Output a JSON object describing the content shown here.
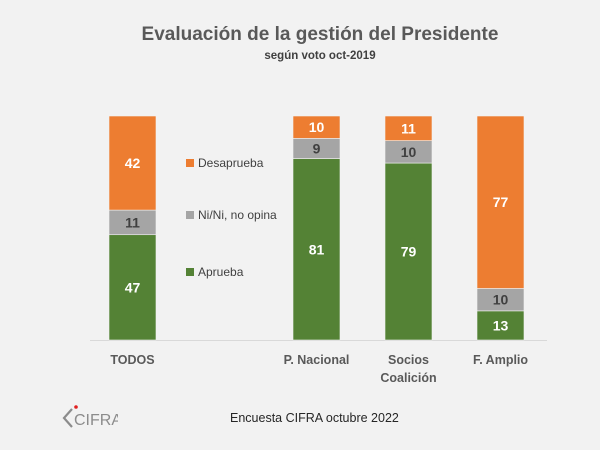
{
  "chart_data": {
    "type": "bar",
    "stacked": true,
    "title": "Evaluación de la gestión del Presidente",
    "subtitle": "según voto oct-2019",
    "categories": [
      "TODOS",
      "P. Nacional",
      "Socios Coalición",
      "F. Amplio"
    ],
    "category_lines": [
      [
        "TODOS"
      ],
      [
        "P. Nacional"
      ],
      [
        "Socios",
        "Coalición"
      ],
      [
        "F. Amplio"
      ]
    ],
    "series": [
      {
        "name": "Aprueba",
        "color": "#548235",
        "label_color": "#ffffff",
        "values": [
          47,
          81,
          79,
          13
        ]
      },
      {
        "name": "Ni/Ni, no opina",
        "color": "#a5a5a5",
        "label_color": "#404040",
        "values": [
          11,
          9,
          10,
          10
        ]
      },
      {
        "name": "Desaprueba",
        "color": "#ed7d31",
        "label_color": "#ffffff",
        "values": [
          42,
          10,
          11,
          77
        ]
      }
    ],
    "legend_order": [
      "Desaprueba",
      "Ni/Ni, no opina",
      "Aprueba"
    ],
    "legend_placement": "between first and second bar",
    "ylim": [
      0,
      100
    ],
    "xlabel": "",
    "ylabel": "",
    "grid": false
  },
  "footer": {
    "source": "Encuesta CIFRA octubre 2022",
    "logo_text": "CIFRA"
  }
}
